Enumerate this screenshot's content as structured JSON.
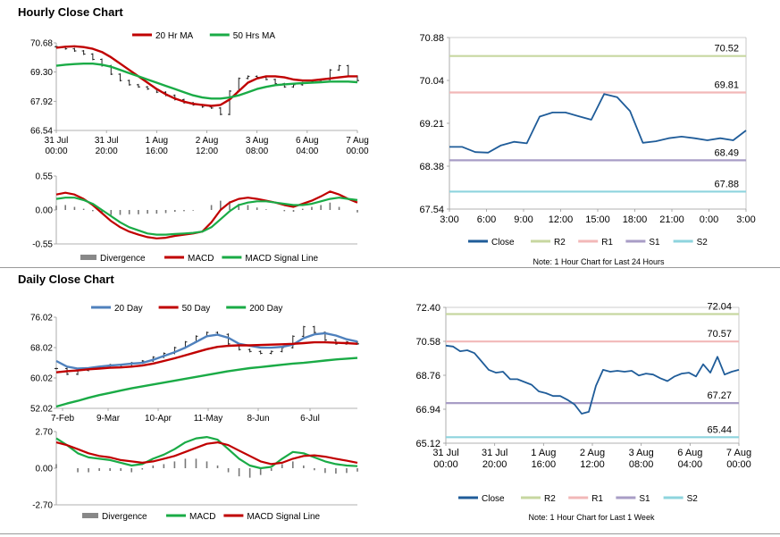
{
  "hourly": {
    "title": "Hourly Close Chart",
    "price_legend": [
      "20 Hr MA",
      "50 Hrs MA"
    ],
    "macd_legend": [
      "Divergence",
      "MACD",
      "MACD Signal Line"
    ],
    "note": "Note: 1 Hour Chart for Last 24 Hours"
  },
  "daily": {
    "title": "Daily Close Chart",
    "price_legend": [
      "20 Day",
      "50 Day",
      "200 Day"
    ],
    "macd_legend": [
      "Divergence",
      "MACD",
      "MACD Signal Line"
    ],
    "note": "Note: 1 Hour Chart for Last 1 Week"
  },
  "colors": {
    "red": "#c00000",
    "green": "#1aab46",
    "blue": "#4f81bd",
    "navy": "#1f5c99",
    "r2": "#c7d7a0",
    "r1": "#f2b8b8",
    "s1": "#a89dc6",
    "s2": "#8ed4de",
    "grey": "#888888"
  },
  "chart_data": [
    {
      "id": "hourly_price",
      "type": "line",
      "x_tick_labels": [
        [
          "31 Jul",
          "00:00"
        ],
        [
          "31 Jul",
          "20:00"
        ],
        [
          "1 Aug",
          "16:00"
        ],
        [
          "2 Aug",
          "12:00"
        ],
        [
          "3 Aug",
          "08:00"
        ],
        [
          "6 Aug",
          "04:00"
        ],
        [
          "7 Aug",
          "00:00"
        ]
      ],
      "y_tick_labels": [
        "70.68",
        "69.30",
        "67.92",
        "66.54"
      ],
      "ylim": [
        66.54,
        70.68
      ],
      "series": [
        {
          "name": "20 Hr MA",
          "color": "#c00000",
          "values": [
            70.45,
            70.5,
            70.52,
            70.48,
            70.4,
            70.25,
            70.0,
            69.7,
            69.4,
            69.1,
            68.8,
            68.5,
            68.25,
            68.05,
            67.9,
            67.8,
            67.75,
            67.7,
            67.75,
            68.0,
            68.4,
            68.8,
            69.0,
            69.1,
            69.1,
            69.05,
            68.95,
            68.9,
            68.9,
            68.95,
            69.0,
            69.05,
            69.1,
            69.1
          ]
        },
        {
          "name": "50 Hrs MA",
          "color": "#1aab46",
          "values": [
            69.6,
            69.65,
            69.68,
            69.7,
            69.7,
            69.65,
            69.55,
            69.4,
            69.25,
            69.1,
            68.95,
            68.8,
            68.65,
            68.5,
            68.35,
            68.2,
            68.1,
            68.05,
            68.05,
            68.1,
            68.2,
            68.35,
            68.5,
            68.6,
            68.68,
            68.72,
            68.75,
            68.78,
            68.8,
            68.82,
            68.85,
            68.85,
            68.85,
            68.82
          ]
        }
      ],
      "bars": {
        "name": "Close",
        "values": [
          70.5,
          70.4,
          70.3,
          70.15,
          69.9,
          69.6,
          69.2,
          68.9,
          68.7,
          68.6,
          68.5,
          68.35,
          68.2,
          68.0,
          67.85,
          67.75,
          67.65,
          67.6,
          67.3,
          68.4,
          69.0,
          69.1,
          69.05,
          68.95,
          68.75,
          68.6,
          68.7,
          68.8,
          68.85,
          68.95,
          69.4,
          69.6,
          69.1,
          68.9
        ]
      }
    },
    {
      "id": "hourly_macd",
      "type": "line",
      "y_tick_labels": [
        "0.55",
        "0.00",
        "-0.55"
      ],
      "ylim": [
        -0.55,
        0.55
      ],
      "series": [
        {
          "name": "MACD",
          "color": "#c00000",
          "values": [
            0.25,
            0.28,
            0.25,
            0.18,
            0.08,
            -0.05,
            -0.18,
            -0.28,
            -0.35,
            -0.4,
            -0.44,
            -0.46,
            -0.45,
            -0.42,
            -0.4,
            -0.38,
            -0.35,
            -0.2,
            0.0,
            0.12,
            0.18,
            0.2,
            0.18,
            0.15,
            0.12,
            0.08,
            0.05,
            0.1,
            0.15,
            0.22,
            0.3,
            0.25,
            0.18,
            0.12
          ]
        },
        {
          "name": "MACD Signal Line",
          "color": "#1aab46",
          "values": [
            0.18,
            0.2,
            0.2,
            0.16,
            0.1,
            0.0,
            -0.1,
            -0.2,
            -0.28,
            -0.33,
            -0.38,
            -0.4,
            -0.4,
            -0.39,
            -0.38,
            -0.37,
            -0.35,
            -0.28,
            -0.15,
            -0.02,
            0.08,
            0.12,
            0.14,
            0.14,
            0.12,
            0.1,
            0.08,
            0.08,
            0.1,
            0.14,
            0.18,
            0.2,
            0.18,
            0.16
          ]
        }
      ],
      "bars": {
        "name": "Divergence",
        "values": [
          0.07,
          0.08,
          0.05,
          0.02,
          -0.02,
          -0.05,
          -0.08,
          -0.08,
          -0.07,
          -0.07,
          -0.06,
          -0.06,
          -0.05,
          -0.03,
          -0.02,
          -0.01,
          0.0,
          0.08,
          0.15,
          0.14,
          0.1,
          0.08,
          0.04,
          0.01,
          0.0,
          -0.02,
          -0.03,
          0.02,
          0.05,
          0.08,
          0.12,
          0.05,
          0.0,
          -0.04
        ]
      }
    },
    {
      "id": "hourly_levels",
      "type": "line",
      "x_tick_labels": [
        "3:00",
        "6:00",
        "9:00",
        "12:00",
        "15:00",
        "18:00",
        "21:00",
        "0:00",
        "3:00"
      ],
      "y_tick_labels": [
        "70.88",
        "70.04",
        "69.21",
        "68.38",
        "67.54"
      ],
      "ylim": [
        67.54,
        70.88
      ],
      "levels": [
        {
          "name": "R2",
          "value": 70.52,
          "label": "70.52",
          "color": "#c7d7a0"
        },
        {
          "name": "R1",
          "value": 69.81,
          "label": "69.81",
          "color": "#f2b8b8"
        },
        {
          "name": "S1",
          "value": 68.49,
          "label": "68.49",
          "color": "#a89dc6"
        },
        {
          "name": "S2",
          "value": 67.88,
          "label": "67.88",
          "color": "#8ed4de"
        }
      ],
      "series": [
        {
          "name": "Close",
          "color": "#1f5c99",
          "values": [
            68.75,
            68.75,
            68.65,
            68.64,
            68.78,
            68.85,
            68.82,
            69.34,
            69.42,
            69.42,
            69.35,
            69.28,
            69.78,
            69.72,
            69.45,
            68.83,
            68.86,
            68.92,
            68.95,
            68.92,
            68.88,
            68.92,
            68.88,
            69.07
          ]
        }
      ]
    },
    {
      "id": "daily_price",
      "type": "line",
      "x_tick_labels": [
        "7-Feb",
        "9-Mar",
        "10-Apr",
        "11-May",
        "8-Jun",
        "6-Jul"
      ],
      "y_tick_labels": [
        "76.02",
        "68.02",
        "60.02",
        "52.02"
      ],
      "ylim": [
        52.02,
        76.02
      ],
      "series": [
        {
          "name": "20 Day",
          "color": "#4f81bd",
          "values": [
            64.5,
            63.0,
            62.5,
            62.6,
            63.0,
            63.3,
            63.5,
            63.8,
            64.0,
            64.8,
            65.8,
            66.8,
            68.0,
            69.5,
            71.0,
            71.4,
            70.6,
            69.0,
            68.5,
            68.0,
            68.0,
            68.2,
            68.8,
            70.5,
            71.5,
            71.8,
            71.2,
            70.2,
            69.6
          ]
        },
        {
          "name": "50 Day",
          "color": "#c00000",
          "values": [
            61.5,
            61.8,
            62.0,
            62.3,
            62.5,
            62.7,
            62.8,
            63.0,
            63.3,
            63.8,
            64.5,
            65.2,
            66.0,
            66.8,
            67.6,
            68.2,
            68.5,
            68.6,
            68.6,
            68.7,
            68.8,
            68.9,
            69.0,
            69.2,
            69.4,
            69.4,
            69.3,
            69.2,
            69.0
          ]
        },
        {
          "name": "200 Day",
          "color": "#1aab46",
          "values": [
            52.5,
            53.3,
            54.0,
            54.8,
            55.5,
            56.1,
            56.7,
            57.3,
            57.8,
            58.3,
            58.8,
            59.3,
            59.8,
            60.3,
            60.8,
            61.3,
            61.8,
            62.2,
            62.6,
            62.9,
            63.2,
            63.5,
            63.8,
            64.0,
            64.3,
            64.6,
            64.9,
            65.1,
            65.3
          ]
        }
      ],
      "bars": {
        "name": "Close",
        "values": [
          62.5,
          61.0,
          62.0,
          62.5,
          62.8,
          63.5,
          63.0,
          64.0,
          64.5,
          65.5,
          66.5,
          68.0,
          69.5,
          71.0,
          72.0,
          71.5,
          69.0,
          67.5,
          67.0,
          66.5,
          67.0,
          68.0,
          71.0,
          73.5,
          72.0,
          70.0,
          69.0,
          69.5,
          69.0
        ]
      }
    },
    {
      "id": "daily_macd",
      "type": "line",
      "y_tick_labels": [
        "2.70",
        "0.00",
        "-2.70"
      ],
      "ylim": [
        -2.7,
        2.7
      ],
      "series": [
        {
          "name": "MACD",
          "color": "#1aab46",
          "values": [
            2.2,
            1.7,
            1.1,
            0.8,
            0.7,
            0.6,
            0.4,
            0.2,
            0.3,
            0.7,
            1.0,
            1.4,
            1.9,
            2.2,
            2.3,
            2.1,
            1.4,
            0.7,
            0.2,
            0.0,
            0.1,
            0.7,
            1.2,
            1.1,
            0.8,
            0.5,
            0.3,
            0.2,
            0.15
          ]
        },
        {
          "name": "MACD Signal Line",
          "color": "#c00000",
          "values": [
            1.9,
            1.7,
            1.4,
            1.1,
            0.9,
            0.8,
            0.6,
            0.5,
            0.4,
            0.5,
            0.7,
            0.9,
            1.2,
            1.5,
            1.8,
            1.9,
            1.7,
            1.3,
            0.9,
            0.5,
            0.3,
            0.4,
            0.7,
            0.9,
            0.95,
            0.85,
            0.7,
            0.55,
            0.4
          ]
        }
      ],
      "bars": {
        "name": "Divergence",
        "values": [
          0.3,
          0.0,
          -0.3,
          -0.3,
          -0.2,
          -0.2,
          -0.2,
          -0.3,
          -0.1,
          0.2,
          0.3,
          0.5,
          0.7,
          0.7,
          0.5,
          0.2,
          -0.3,
          -0.6,
          -0.7,
          -0.5,
          -0.2,
          0.3,
          0.5,
          0.2,
          -0.15,
          -0.35,
          -0.4,
          -0.35,
          -0.25
        ]
      }
    },
    {
      "id": "daily_levels",
      "type": "line",
      "x_tick_labels": [
        [
          "31 Jul",
          "00:00"
        ],
        [
          "31 Jul",
          "20:00"
        ],
        [
          "1 Aug",
          "16:00"
        ],
        [
          "2 Aug",
          "12:00"
        ],
        [
          "3 Aug",
          "08:00"
        ],
        [
          "6 Aug",
          "04:00"
        ],
        [
          "7 Aug",
          "00:00"
        ]
      ],
      "y_tick_labels": [
        "72.40",
        "70.58",
        "68.76",
        "66.94",
        "65.12"
      ],
      "ylim": [
        65.12,
        72.4
      ],
      "levels": [
        {
          "name": "R2",
          "value": 72.04,
          "label": "72.04",
          "color": "#c7d7a0"
        },
        {
          "name": "R1",
          "value": 70.57,
          "label": "70.57",
          "color": "#f2b8b8"
        },
        {
          "name": "S1",
          "value": 67.27,
          "label": "67.27",
          "color": "#a89dc6"
        },
        {
          "name": "S2",
          "value": 65.44,
          "label": "65.44",
          "color": "#8ed4de"
        }
      ],
      "series": [
        {
          "name": "Close",
          "color": "#1f5c99",
          "values": [
            70.35,
            70.3,
            70.05,
            70.1,
            69.95,
            69.5,
            69.05,
            68.9,
            68.95,
            68.55,
            68.55,
            68.4,
            68.25,
            67.9,
            67.8,
            67.65,
            67.65,
            67.45,
            67.2,
            66.7,
            66.8,
            68.2,
            69.05,
            68.95,
            69.0,
            68.95,
            69.0,
            68.75,
            68.85,
            68.8,
            68.6,
            68.45,
            68.7,
            68.85,
            68.9,
            68.7,
            69.35,
            68.9,
            69.75,
            68.8,
            68.95,
            69.05
          ]
        }
      ]
    }
  ]
}
